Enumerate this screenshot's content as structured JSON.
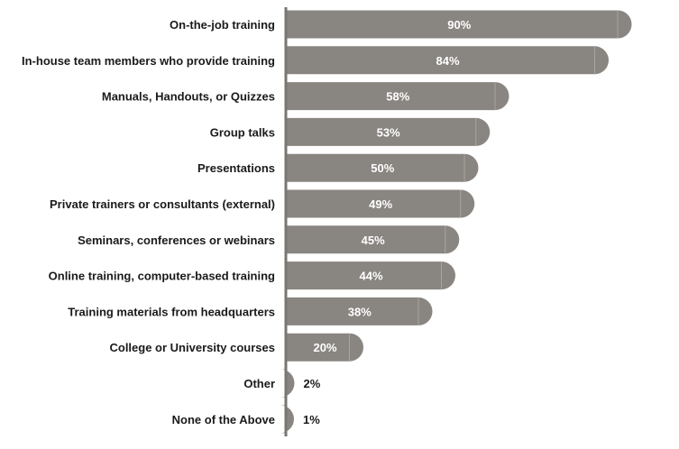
{
  "chart_data": {
    "type": "bar",
    "orientation": "horizontal",
    "categories": [
      "On-the-job training",
      "In-house team members who provide training",
      "Manuals, Handouts, or Quizzes",
      "Group talks",
      "Presentations",
      "Private trainers or consultants (external)",
      "Seminars, conferences or webinars",
      "Online training, computer-based training",
      "Training materials from headquarters",
      "College or University courses",
      "Other",
      "None of the Above"
    ],
    "values": [
      90,
      84,
      58,
      53,
      50,
      49,
      45,
      44,
      38,
      20,
      2,
      1
    ],
    "value_labels": [
      "90%",
      "84%",
      "58%",
      "53%",
      "50%",
      "49%",
      "45%",
      "44%",
      "38%",
      "20%",
      "2%",
      "1%"
    ],
    "xlim": [
      0,
      100
    ],
    "title": "",
    "xlabel": "",
    "ylabel": "",
    "grid": false,
    "legend": "none",
    "colors": {
      "bar": "#898580",
      "bar_highlight": "#a8a49f",
      "axis": "#7a7672",
      "label_inside": "#ffffff",
      "label_outside": "#1a1a1a"
    }
  }
}
